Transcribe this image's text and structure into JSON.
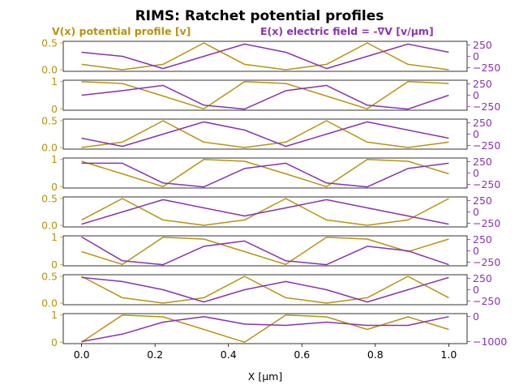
{
  "chart_data": {
    "type": "line",
    "title": "RIMS: Ratchet potential profiles",
    "legend_left": "V(x) potential profile [v]",
    "legend_right": "E(x) electric field = -∇V [v/μm]",
    "xlabel": "X [μm]",
    "x": [
      0.0,
      0.111,
      0.222,
      0.333,
      0.444,
      0.556,
      0.667,
      0.778,
      0.889,
      1.0
    ],
    "xlim": [
      -0.05,
      1.05
    ],
    "xticks": [
      0.0,
      0.2,
      0.4,
      0.6,
      0.8,
      1.0
    ],
    "xtick_labels": [
      "0.0",
      "0.2",
      "0.4",
      "0.6",
      "0.8",
      "1.0"
    ],
    "colors": {
      "potential": "#b8930f",
      "field": "#8a32b0"
    },
    "panels": [
      {
        "potential": [
          0.1,
          0.0,
          0.1,
          0.5,
          0.1,
          0.0,
          0.1,
          0.5,
          0.1,
          0.0
        ],
        "field": [
          90,
          0,
          -270,
          0,
          270,
          90,
          -270,
          0,
          270,
          90
        ],
        "ylim_left": [
          -0.03,
          0.53
        ],
        "yticks_left": [
          0.0,
          0.5
        ],
        "ytick_labels_left": [
          "0.0",
          "0.5"
        ],
        "ylim_right": [
          -330,
          330
        ],
        "yticks_right": [
          -250,
          0,
          250
        ],
        "ytick_labels_right": [
          "−250",
          "0",
          "250"
        ]
      },
      {
        "potential": [
          1.0,
          0.93,
          0.47,
          0.0,
          1.0,
          0.93,
          0.47,
          0.0,
          1.0,
          0.93
        ],
        "field": [
          0,
          100,
          215,
          -220,
          -305,
          100,
          215,
          -220,
          -305,
          0
        ],
        "ylim_left": [
          -0.05,
          1.05
        ],
        "yticks_left": [
          0.0,
          1.0
        ],
        "ytick_labels_left": [
          "0",
          "1"
        ],
        "ylim_right": [
          -330,
          330
        ],
        "yticks_right": [
          -250,
          0,
          250
        ],
        "ytick_labels_right": [
          "−250",
          "0",
          "250"
        ]
      },
      {
        "potential": [
          0.0,
          0.1,
          0.5,
          0.1,
          0.0,
          0.1,
          0.5,
          0.1,
          0.0,
          0.1
        ],
        "field": [
          -90,
          -270,
          0,
          270,
          90,
          -270,
          0,
          270,
          90,
          -90
        ],
        "ylim_left": [
          -0.03,
          0.53
        ],
        "yticks_left": [
          0.0,
          0.5
        ],
        "ytick_labels_left": [
          "0.0",
          "0.5"
        ],
        "ylim_right": [
          -330,
          330
        ],
        "yticks_right": [
          -250,
          0,
          250
        ],
        "ytick_labels_right": [
          "−250",
          "0",
          "250"
        ]
      },
      {
        "potential": [
          0.93,
          0.47,
          0.0,
          1.0,
          0.93,
          0.47,
          0.0,
          1.0,
          0.93,
          0.47
        ],
        "field": [
          215,
          215,
          -220,
          -305,
          100,
          215,
          -220,
          -305,
          100,
          215
        ],
        "ylim_left": [
          -0.05,
          1.05
        ],
        "yticks_left": [
          0.0,
          1.0
        ],
        "ytick_labels_left": [
          "0",
          "1"
        ],
        "ylim_right": [
          -330,
          330
        ],
        "yticks_right": [
          -250,
          0,
          250
        ],
        "ytick_labels_right": [
          "−250",
          "0",
          "250"
        ]
      },
      {
        "potential": [
          0.1,
          0.5,
          0.1,
          0.0,
          0.1,
          0.5,
          0.1,
          0.0,
          0.1,
          0.5
        ],
        "field": [
          -270,
          0,
          270,
          90,
          -90,
          90,
          270,
          90,
          -90,
          -270
        ],
        "ylim_left": [
          -0.03,
          0.53
        ],
        "yticks_left": [
          0.0,
          0.5
        ],
        "ytick_labels_left": [
          "0.0",
          "0.5"
        ],
        "ylim_right": [
          -330,
          330
        ],
        "yticks_right": [
          -250,
          0,
          250
        ],
        "ytick_labels_right": [
          "−250",
          "0",
          "250"
        ]
      },
      {
        "potential": [
          0.47,
          0.0,
          1.0,
          0.93,
          0.47,
          0.0,
          1.0,
          0.93,
          0.47,
          0.93
        ],
        "field": [
          305,
          -220,
          -305,
          100,
          215,
          -220,
          -305,
          100,
          0,
          -305
        ],
        "ylim_left": [
          -0.05,
          1.05
        ],
        "yticks_left": [
          0.0,
          1.0
        ],
        "ytick_labels_left": [
          "0",
          "1"
        ],
        "ylim_right": [
          -330,
          330
        ],
        "yticks_right": [
          -250,
          0,
          250
        ],
        "ytick_labels_right": [
          "−250",
          "0",
          "250"
        ]
      },
      {
        "potential": [
          0.5,
          0.1,
          0.0,
          0.1,
          0.5,
          0.1,
          0.0,
          0.1,
          0.5,
          0.1
        ],
        "field": [
          270,
          180,
          0,
          -270,
          0,
          180,
          0,
          -270,
          0,
          270
        ],
        "ylim_left": [
          -0.03,
          0.53
        ],
        "yticks_left": [
          0.0,
          0.5
        ],
        "ytick_labels_left": [
          "0.0",
          "0.5"
        ],
        "ylim_right": [
          -330,
          330
        ],
        "yticks_right": [
          -250,
          0,
          250
        ],
        "ytick_labels_right": [
          "−250",
          "0",
          "250"
        ]
      },
      {
        "potential": [
          0.0,
          1.0,
          0.93,
          0.47,
          0.0,
          1.0,
          0.93,
          0.47,
          0.93,
          0.47
        ],
        "field": [
          -1000,
          -700,
          -220,
          0,
          -300,
          -350,
          -220,
          -350,
          -350,
          -1
        ],
        "ylim_left": [
          -0.05,
          1.05
        ],
        "yticks_left": [
          0.0,
          1.0
        ],
        "ytick_labels_left": [
          "0",
          "1"
        ],
        "ylim_right": [
          -1080,
          120
        ],
        "yticks_right": [
          -1000,
          0
        ],
        "ytick_labels_right": [
          "−1000",
          "0"
        ]
      }
    ]
  }
}
